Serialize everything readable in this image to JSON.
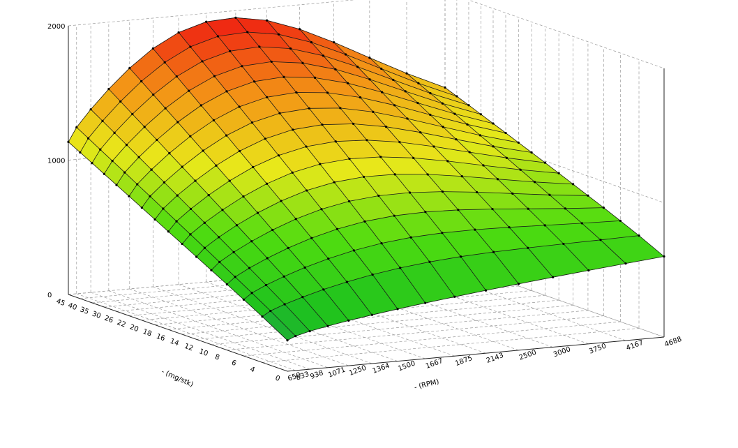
{
  "chart_data": {
    "type": "surface-3d",
    "x_axis": {
      "title": "- (RPM)",
      "ticks": [
        "650",
        "833",
        "938",
        "1071",
        "1250",
        "1364",
        "1500",
        "1667",
        "1875",
        "2143",
        "2500",
        "3000",
        "3750",
        "4167",
        "4688"
      ]
    },
    "y_axis": {
      "title": "- (mg/stk)",
      "ticks": [
        "0",
        "4",
        "6",
        "8",
        "10",
        "12",
        "14",
        "16",
        "18",
        "20",
        "22",
        "26",
        "30",
        "35",
        "40",
        "45"
      ]
    },
    "z_axis": {
      "ticks": [
        "0",
        "1000",
        "2000"
      ],
      "range": [
        0,
        2000
      ]
    },
    "color_scale": [
      "#1f7a7a",
      "#1ec21e",
      "#4fdc10",
      "#e8e81a",
      "#f39a16",
      "#ef2a12"
    ]
  }
}
